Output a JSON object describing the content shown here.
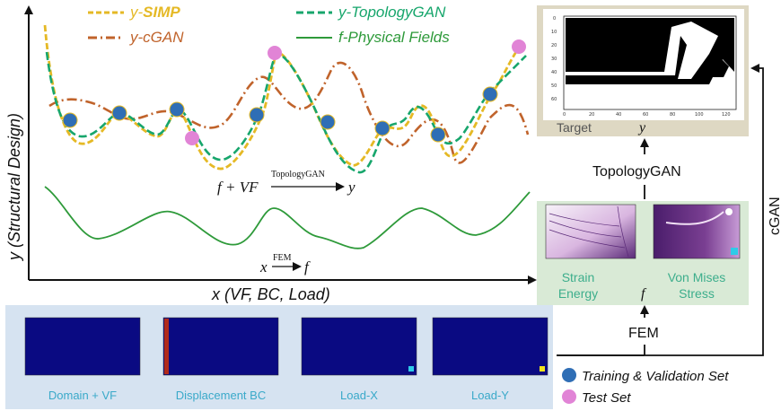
{
  "legend": {
    "simp_prefix": "y-",
    "simp_bold": "SIMP",
    "cgan": "y-cGAN",
    "topologygan": "y-TopologyGAN",
    "physical": "f-Physical Fields"
  },
  "axes": {
    "y_label": "y (Structural Design)",
    "x_label": "x (VF, BC, Load)"
  },
  "annotations": {
    "topologygan_map_left": "f + VF",
    "topologygan_map_over": "TopologyGAN",
    "topologygan_map_right": "y",
    "fem_map_left": "x",
    "fem_map_over": "FEM",
    "fem_map_right": "f"
  },
  "target_panel": {
    "label": "Target",
    "y_symbol": "y",
    "y_ticks": [
      "0",
      "10",
      "20",
      "30",
      "40",
      "50",
      "60"
    ],
    "x_ticks": [
      "0",
      "20",
      "40",
      "60",
      "80",
      "100",
      "120"
    ]
  },
  "fields_panel": {
    "strain_label_1": "Strain",
    "strain_label_2": "Energy",
    "stress_label_1": "Von Mises",
    "stress_label_2": "Stress",
    "f_symbol": "f"
  },
  "flow": {
    "topologygan": "TopologyGAN",
    "cgan": "cGAN",
    "fem": "FEM"
  },
  "inputs": [
    {
      "label": "Domain + VF"
    },
    {
      "label": "Displacement BC"
    },
    {
      "label": "Load-X"
    },
    {
      "label": "Load-Y"
    }
  ],
  "sets": {
    "training": "Training & Validation Set",
    "test": "Test Set"
  },
  "colors": {
    "simp": "#e5b925",
    "cgan": "#c0632b",
    "topologygan": "#17a66c",
    "physical": "#2e9a3a",
    "training_dot": "#2f6eb5",
    "test_dot": "#e184d6",
    "panel_bg": "#ded8c3",
    "field_bg": "#d9ead6",
    "input_bg": "#d6e3f1",
    "heatmap": "#0a0a82",
    "bc_bar": "#b12a1a",
    "load_mark": "#2fcbe8",
    "load_y_mark": "#f1e21c"
  }
}
